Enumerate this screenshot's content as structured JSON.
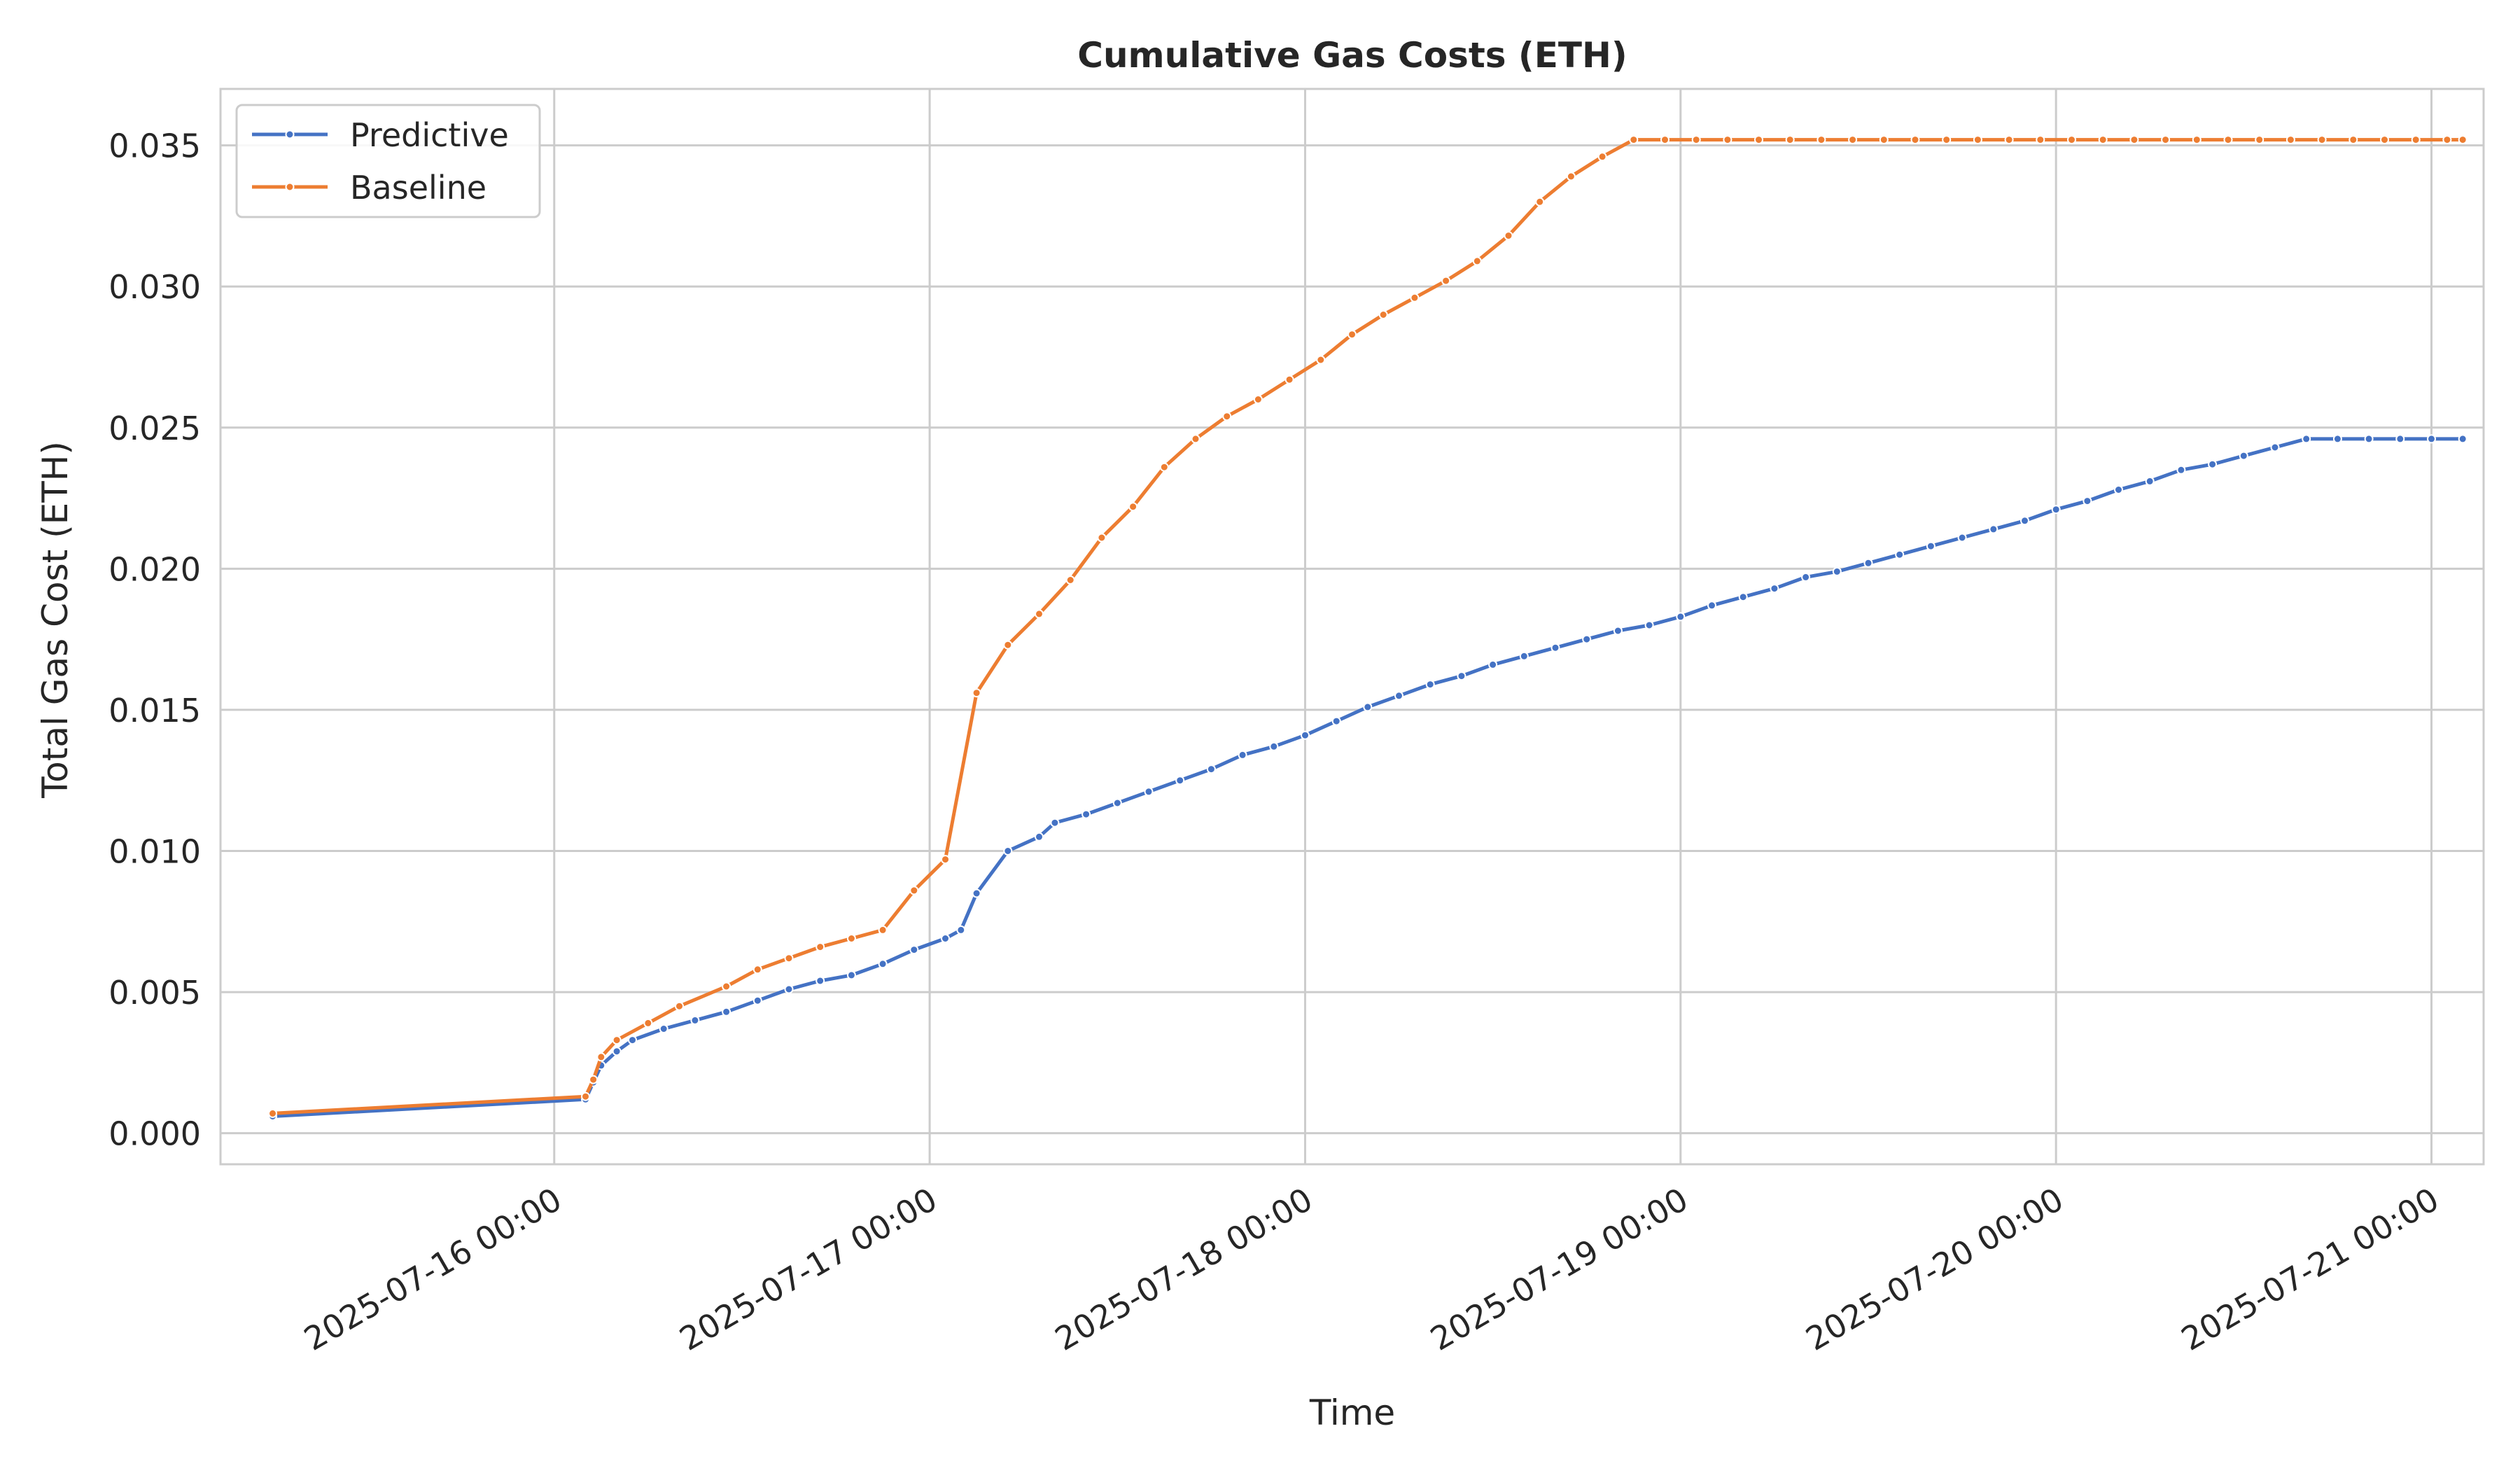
{
  "chart_data": {
    "type": "line",
    "title": "Cumulative Gas Costs (ETH)",
    "xlabel": "Time",
    "ylabel": "Total Gas Cost (ETH)",
    "x_axis_type": "datetime",
    "xlim": [
      "2025-07-15 02:40",
      "2025-07-21 03:20"
    ],
    "ylim": [
      -0.0011,
      0.037
    ],
    "x_ticks": [
      "2025-07-16 00:00",
      "2025-07-17 00:00",
      "2025-07-18 00:00",
      "2025-07-19 00:00",
      "2025-07-20 00:00",
      "2025-07-21 00:00"
    ],
    "y_ticks": [
      0.0,
      0.005,
      0.01,
      0.015,
      0.02,
      0.025,
      0.03,
      0.035
    ],
    "y_tick_labels": [
      "0.000",
      "0.005",
      "0.010",
      "0.015",
      "0.020",
      "0.025",
      "0.030",
      "0.035"
    ],
    "grid": true,
    "legend_position": "top-left",
    "colors": {
      "background": "#ffffff",
      "grid": "#cccccc",
      "axes_edge": "#cccccc",
      "text": "#262626"
    },
    "series": [
      {
        "name": "Predictive",
        "color": "#4472c4",
        "x": [
          "2025-07-15 06:00",
          "2025-07-16 02:00",
          "2025-07-16 02:30",
          "2025-07-16 03:00",
          "2025-07-16 04:00",
          "2025-07-16 05:00",
          "2025-07-16 07:00",
          "2025-07-16 09:00",
          "2025-07-16 11:00",
          "2025-07-16 13:00",
          "2025-07-16 15:00",
          "2025-07-16 17:00",
          "2025-07-16 19:00",
          "2025-07-16 21:00",
          "2025-07-16 23:00",
          "2025-07-17 01:00",
          "2025-07-17 02:00",
          "2025-07-17 03:00",
          "2025-07-17 05:00",
          "2025-07-17 07:00",
          "2025-07-17 08:00",
          "2025-07-17 10:00",
          "2025-07-17 12:00",
          "2025-07-17 14:00",
          "2025-07-17 16:00",
          "2025-07-17 18:00",
          "2025-07-17 20:00",
          "2025-07-17 22:00",
          "2025-07-18 00:00",
          "2025-07-18 02:00",
          "2025-07-18 04:00",
          "2025-07-18 06:00",
          "2025-07-18 08:00",
          "2025-07-18 10:00",
          "2025-07-18 12:00",
          "2025-07-18 14:00",
          "2025-07-18 16:00",
          "2025-07-18 18:00",
          "2025-07-18 20:00",
          "2025-07-18 22:00",
          "2025-07-19 00:00",
          "2025-07-19 02:00",
          "2025-07-19 04:00",
          "2025-07-19 06:00",
          "2025-07-19 08:00",
          "2025-07-19 10:00",
          "2025-07-19 12:00",
          "2025-07-19 14:00",
          "2025-07-19 16:00",
          "2025-07-19 18:00",
          "2025-07-19 20:00",
          "2025-07-19 22:00",
          "2025-07-20 00:00",
          "2025-07-20 02:00",
          "2025-07-20 04:00",
          "2025-07-20 06:00",
          "2025-07-20 08:00",
          "2025-07-20 10:00",
          "2025-07-20 12:00",
          "2025-07-20 14:00",
          "2025-07-20 16:00",
          "2025-07-20 18:00",
          "2025-07-20 20:00",
          "2025-07-20 22:00",
          "2025-07-21 00:00",
          "2025-07-21 02:00"
        ],
        "y": [
          0.0006,
          0.0012,
          0.0018,
          0.0024,
          0.0029,
          0.0033,
          0.0037,
          0.004,
          0.0043,
          0.0047,
          0.0051,
          0.0054,
          0.0056,
          0.006,
          0.0065,
          0.0069,
          0.0072,
          0.0085,
          0.01,
          0.0105,
          0.011,
          0.0113,
          0.0117,
          0.0121,
          0.0125,
          0.0129,
          0.0134,
          0.0137,
          0.0141,
          0.0146,
          0.0151,
          0.0155,
          0.0159,
          0.0162,
          0.0166,
          0.0169,
          0.0172,
          0.0175,
          0.0178,
          0.018,
          0.0183,
          0.0187,
          0.019,
          0.0193,
          0.0197,
          0.0199,
          0.0202,
          0.0205,
          0.0208,
          0.0211,
          0.0214,
          0.0217,
          0.0221,
          0.0224,
          0.0228,
          0.0231,
          0.0235,
          0.0237,
          0.024,
          0.0243,
          0.0246,
          0.0246,
          0.0246,
          0.0246,
          0.0246,
          0.0246
        ]
      },
      {
        "name": "Baseline",
        "color": "#ed7d31",
        "x": [
          "2025-07-15 06:00",
          "2025-07-16 02:00",
          "2025-07-16 02:30",
          "2025-07-16 03:00",
          "2025-07-16 04:00",
          "2025-07-16 06:00",
          "2025-07-16 08:00",
          "2025-07-16 11:00",
          "2025-07-16 13:00",
          "2025-07-16 15:00",
          "2025-07-16 17:00",
          "2025-07-16 19:00",
          "2025-07-16 21:00",
          "2025-07-16 23:00",
          "2025-07-17 01:00",
          "2025-07-17 03:00",
          "2025-07-17 05:00",
          "2025-07-17 07:00",
          "2025-07-17 09:00",
          "2025-07-17 11:00",
          "2025-07-17 13:00",
          "2025-07-17 15:00",
          "2025-07-17 17:00",
          "2025-07-17 19:00",
          "2025-07-17 21:00",
          "2025-07-17 23:00",
          "2025-07-18 01:00",
          "2025-07-18 03:00",
          "2025-07-18 05:00",
          "2025-07-18 07:00",
          "2025-07-18 09:00",
          "2025-07-18 11:00",
          "2025-07-18 13:00",
          "2025-07-18 15:00",
          "2025-07-18 17:00",
          "2025-07-18 19:00",
          "2025-07-18 21:00",
          "2025-07-18 23:00",
          "2025-07-19 01:00",
          "2025-07-19 03:00",
          "2025-07-19 05:00",
          "2025-07-19 07:00",
          "2025-07-19 09:00",
          "2025-07-19 11:00",
          "2025-07-19 13:00",
          "2025-07-19 15:00",
          "2025-07-19 17:00",
          "2025-07-19 19:00",
          "2025-07-19 21:00",
          "2025-07-19 23:00",
          "2025-07-20 01:00",
          "2025-07-20 03:00",
          "2025-07-20 05:00",
          "2025-07-20 07:00",
          "2025-07-20 09:00",
          "2025-07-20 11:00",
          "2025-07-20 13:00",
          "2025-07-20 15:00",
          "2025-07-20 17:00",
          "2025-07-20 19:00",
          "2025-07-20 21:00",
          "2025-07-20 23:00",
          "2025-07-21 01:00",
          "2025-07-21 02:00"
        ],
        "y": [
          0.0007,
          0.0013,
          0.0019,
          0.0027,
          0.0033,
          0.0039,
          0.0045,
          0.0052,
          0.0058,
          0.0062,
          0.0066,
          0.0069,
          0.0072,
          0.0086,
          0.0097,
          0.0156,
          0.0173,
          0.0184,
          0.0196,
          0.0211,
          0.0222,
          0.0236,
          0.0246,
          0.0254,
          0.026,
          0.0267,
          0.0274,
          0.0283,
          0.029,
          0.0296,
          0.0302,
          0.0309,
          0.0318,
          0.033,
          0.0339,
          0.0346,
          0.0352,
          0.0352,
          0.0352,
          0.0352,
          0.0352,
          0.0352,
          0.0352,
          0.0352,
          0.0352,
          0.0352,
          0.0352,
          0.0352,
          0.0352,
          0.0352,
          0.0352,
          0.0352,
          0.0352,
          0.0352,
          0.0352,
          0.0352,
          0.0352,
          0.0352,
          0.0352,
          0.0352,
          0.0352,
          0.0352,
          0.0352,
          0.0352
        ]
      }
    ]
  }
}
